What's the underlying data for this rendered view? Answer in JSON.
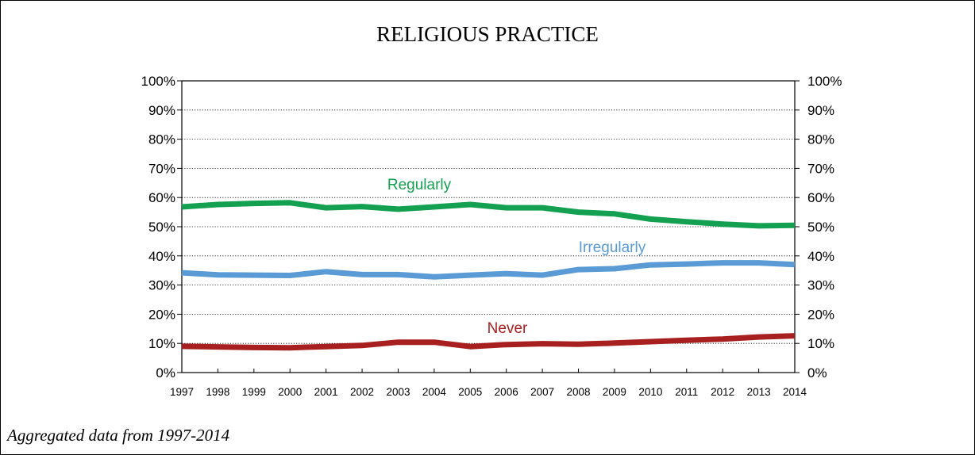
{
  "page": {
    "caption": "Aggregated data from 1997-2014"
  },
  "chart_data": {
    "type": "line",
    "title": "RELIGIOUS PRACTICE",
    "xlabel": "",
    "ylabel": "",
    "x": [
      "1997",
      "1998",
      "1999",
      "2000",
      "2001",
      "2002",
      "2003",
      "2004",
      "2005",
      "2006",
      "2007",
      "2008",
      "2009",
      "2010",
      "2011",
      "2012",
      "2013",
      "2014"
    ],
    "ylim": [
      0,
      100
    ],
    "y_ticks": [
      "0%",
      "10%",
      "20%",
      "30%",
      "40%",
      "50%",
      "60%",
      "70%",
      "80%",
      "90%",
      "100%"
    ],
    "y_axis_right": true,
    "grid": "horizontal-dotted",
    "series": [
      {
        "name": "Regularly",
        "color": "#13a051",
        "values": [
          56.8,
          57.6,
          58.0,
          58.2,
          56.5,
          56.9,
          56.0,
          56.8,
          57.6,
          56.5,
          56.5,
          55.0,
          54.4,
          52.6,
          51.7,
          50.9,
          50.3,
          50.5
        ]
      },
      {
        "name": "Irregularly",
        "color": "#5b9bd5",
        "values": [
          34.2,
          33.5,
          33.4,
          33.3,
          34.6,
          33.6,
          33.6,
          32.8,
          33.4,
          33.9,
          33.4,
          35.3,
          35.6,
          36.9,
          37.2,
          37.6,
          37.6,
          37.0
        ]
      },
      {
        "name": "Never",
        "color": "#a81f1f",
        "values": [
          9.0,
          8.8,
          8.6,
          8.5,
          8.9,
          9.3,
          10.4,
          10.4,
          8.9,
          9.6,
          9.9,
          9.7,
          10.1,
          10.6,
          11.1,
          11.5,
          12.2,
          12.6
        ]
      }
    ]
  }
}
